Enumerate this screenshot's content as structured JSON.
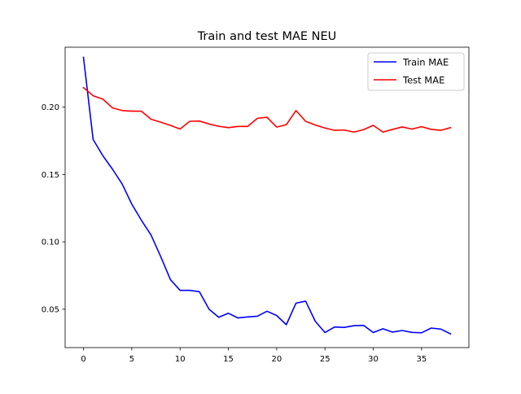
{
  "chart_data": {
    "type": "line",
    "title": "Train and test MAE NEU",
    "xlabel": "",
    "ylabel": "",
    "xlim": [
      -1.9,
      39.9
    ],
    "ylim": [
      0.0215,
      0.2445
    ],
    "xticks": [
      0,
      5,
      10,
      15,
      20,
      25,
      30,
      35
    ],
    "xtick_labels": [
      "0",
      "5",
      "10",
      "15",
      "20",
      "25",
      "30",
      "35"
    ],
    "yticks": [
      0.05,
      0.1,
      0.15,
      0.2
    ],
    "ytick_labels": [
      "0.05",
      "0.10",
      "0.15",
      "0.20"
    ],
    "grid": false,
    "legend_position": "upper right",
    "x": [
      0,
      1,
      2,
      3,
      4,
      5,
      6,
      7,
      8,
      9,
      10,
      11,
      12,
      13,
      14,
      15,
      16,
      17,
      18,
      19,
      20,
      21,
      22,
      23,
      24,
      25,
      26,
      27,
      28,
      29,
      30,
      31,
      32,
      33,
      34,
      35,
      36,
      37,
      38
    ],
    "series": [
      {
        "name": "Train MAE",
        "color": "#0000ff",
        "values": [
          0.237,
          0.176,
          0.164,
          0.154,
          0.143,
          0.128,
          0.116,
          0.105,
          0.089,
          0.072,
          0.064,
          0.064,
          0.063,
          0.05,
          0.044,
          0.047,
          0.0435,
          0.0443,
          0.0448,
          0.0485,
          0.0453,
          0.0385,
          0.0545,
          0.056,
          0.041,
          0.0327,
          0.0368,
          0.0365,
          0.0378,
          0.038,
          0.0327,
          0.0355,
          0.033,
          0.0342,
          0.0328,
          0.0325,
          0.036,
          0.0352,
          0.0317
        ]
      },
      {
        "name": "Test MAE",
        "color": "#ff0000",
        "values": [
          0.2145,
          0.2085,
          0.206,
          0.1995,
          0.1975,
          0.197,
          0.197,
          0.191,
          0.1888,
          0.1865,
          0.1838,
          0.1895,
          0.1897,
          0.1875,
          0.1858,
          0.1848,
          0.1857,
          0.1857,
          0.1917,
          0.1925,
          0.1852,
          0.187,
          0.1975,
          0.1895,
          0.1867,
          0.1845,
          0.1828,
          0.183,
          0.1815,
          0.1833,
          0.1865,
          0.1815,
          0.1835,
          0.1853,
          0.1837,
          0.1855,
          0.1835,
          0.1828,
          0.1848
        ]
      }
    ]
  }
}
